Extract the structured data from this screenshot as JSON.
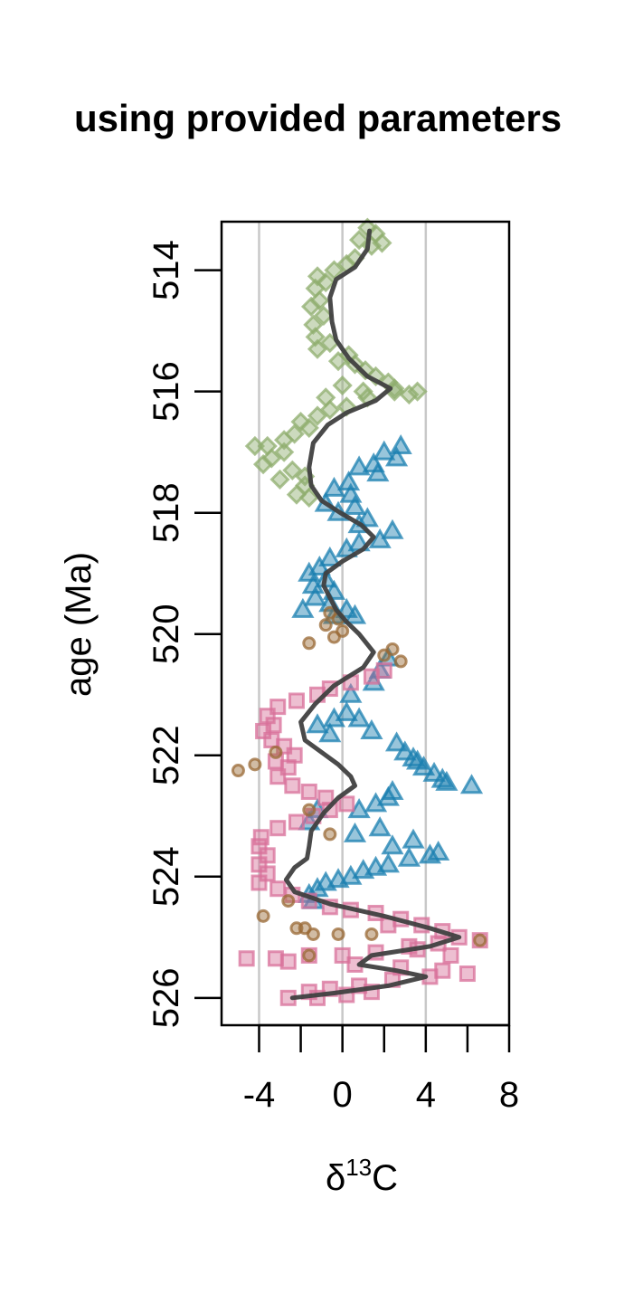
{
  "chart_data": {
    "type": "scatter",
    "title": "using provided parameters",
    "xlabel": {
      "prefix": "δ",
      "superscript": "13",
      "suffix": "C"
    },
    "ylabel": "age (Ma)",
    "xlim": [
      -5.8,
      8
    ],
    "ylim": [
      513.2,
      526.45
    ],
    "y_reversed": true,
    "xticks": [
      -4,
      -2,
      0,
      2,
      4,
      6,
      8
    ],
    "xtick_labels": [
      "-4",
      "",
      "0",
      "",
      "4",
      "",
      "8"
    ],
    "yticks": [
      514,
      516,
      518,
      520,
      522,
      524,
      526
    ],
    "ytick_labels": [
      "514",
      "516",
      "518",
      "520",
      "522",
      "524",
      "526"
    ],
    "vertical_gridlines": [
      -4,
      0,
      4
    ],
    "grid": true,
    "legend": "none",
    "series": [
      {
        "marker": "diamond",
        "color": "#8fae6e",
        "points": [
          [
            1.2,
            513.3
          ],
          [
            1.6,
            513.4
          ],
          [
            0.8,
            513.5
          ],
          [
            1.4,
            513.6
          ],
          [
            1.9,
            513.55
          ],
          [
            0.6,
            513.8
          ],
          [
            0.2,
            513.9
          ],
          [
            -0.4,
            514.0
          ],
          [
            -1.2,
            514.1
          ],
          [
            -0.8,
            514.2
          ],
          [
            -1.3,
            514.3
          ],
          [
            -1.1,
            514.5
          ],
          [
            -1.5,
            514.6
          ],
          [
            -0.9,
            514.75
          ],
          [
            -1.4,
            514.9
          ],
          [
            -1.3,
            515.1
          ],
          [
            -0.6,
            515.2
          ],
          [
            -1.2,
            515.3
          ],
          [
            0.3,
            515.4
          ],
          [
            -0.2,
            515.5
          ],
          [
            0.6,
            515.55
          ],
          [
            1.1,
            515.65
          ],
          [
            1.6,
            515.75
          ],
          [
            2.2,
            515.85
          ],
          [
            2.5,
            515.95
          ],
          [
            1.0,
            516.0
          ],
          [
            2.5,
            516.0
          ],
          [
            3.6,
            516.0
          ],
          [
            3.2,
            516.05
          ],
          [
            1.2,
            516.1
          ],
          [
            0.2,
            516.25
          ],
          [
            -0.6,
            516.3
          ],
          [
            -1.2,
            516.4
          ],
          [
            -2.0,
            516.5
          ],
          [
            -1.6,
            516.6
          ],
          [
            -2.3,
            516.7
          ],
          [
            -2.8,
            516.8
          ],
          [
            -3.6,
            516.9
          ],
          [
            -4.2,
            516.9
          ],
          [
            -2.8,
            517.0
          ],
          [
            -3.4,
            517.1
          ],
          [
            -3.8,
            517.2
          ],
          [
            -2.4,
            517.3
          ],
          [
            -1.8,
            517.4
          ],
          [
            -3.0,
            517.45
          ],
          [
            -1.8,
            517.55
          ],
          [
            -2.2,
            517.7
          ],
          [
            -1.6,
            517.75
          ],
          [
            -0.8,
            516.1
          ],
          [
            0.0,
            515.9
          ]
        ]
      },
      {
        "marker": "triangle",
        "color": "#1a7fb0",
        "points": [
          [
            2.8,
            516.9
          ],
          [
            2.0,
            517.0
          ],
          [
            2.6,
            517.1
          ],
          [
            1.5,
            517.2
          ],
          [
            0.8,
            517.25
          ],
          [
            1.7,
            517.35
          ],
          [
            0.3,
            517.5
          ],
          [
            -0.4,
            517.6
          ],
          [
            0.4,
            517.7
          ],
          [
            -0.8,
            517.85
          ],
          [
            0.6,
            517.9
          ],
          [
            -0.2,
            518.0
          ],
          [
            1.2,
            518.1
          ],
          [
            0.8,
            518.2
          ],
          [
            2.4,
            518.3
          ],
          [
            1.8,
            518.45
          ],
          [
            0.8,
            518.5
          ],
          [
            0.2,
            518.6
          ],
          [
            -0.6,
            518.75
          ],
          [
            -1.1,
            518.9
          ],
          [
            -1.6,
            519.0
          ],
          [
            -0.8,
            519.1
          ],
          [
            -1.4,
            519.2
          ],
          [
            -0.4,
            519.3
          ],
          [
            -1.3,
            519.4
          ],
          [
            -0.6,
            519.5
          ],
          [
            -1.9,
            519.6
          ],
          [
            0.2,
            519.6
          ],
          [
            -0.4,
            519.7
          ],
          [
            0.6,
            519.7
          ],
          [
            2.2,
            520.4
          ],
          [
            1.8,
            520.6
          ],
          [
            1.5,
            520.8
          ],
          [
            0.4,
            521.0
          ],
          [
            0.2,
            521.3
          ],
          [
            -0.4,
            521.4
          ],
          [
            -1.2,
            521.5
          ],
          [
            0.8,
            521.4
          ],
          [
            1.4,
            521.6
          ],
          [
            -0.6,
            521.65
          ],
          [
            2.6,
            521.8
          ],
          [
            3.0,
            521.95
          ],
          [
            3.4,
            522.05
          ],
          [
            3.9,
            522.2
          ],
          [
            4.4,
            522.3
          ],
          [
            5.0,
            522.45
          ],
          [
            6.2,
            522.5
          ],
          [
            3.6,
            522.1
          ],
          [
            4.8,
            522.4
          ],
          [
            2.4,
            522.6
          ],
          [
            2.2,
            522.7
          ],
          [
            1.6,
            522.8
          ],
          [
            0.8,
            522.9
          ],
          [
            -1.2,
            522.9
          ],
          [
            -1.6,
            523.1
          ],
          [
            1.8,
            523.2
          ],
          [
            0.6,
            523.3
          ],
          [
            3.4,
            523.4
          ],
          [
            2.4,
            523.5
          ],
          [
            4.6,
            523.6
          ],
          [
            4.2,
            523.65
          ],
          [
            3.2,
            523.7
          ],
          [
            2.2,
            523.8
          ],
          [
            1.6,
            523.85
          ],
          [
            1.0,
            523.9
          ],
          [
            0.4,
            524.0
          ],
          [
            -0.2,
            524.05
          ],
          [
            -0.8,
            524.1
          ],
          [
            -1.2,
            524.2
          ],
          [
            -1.6,
            524.3
          ],
          [
            -1.4,
            524.4
          ]
        ]
      },
      {
        "marker": "square",
        "color": "#d8709a",
        "points": [
          [
            2.0,
            520.6
          ],
          [
            1.4,
            520.7
          ],
          [
            0.4,
            520.8
          ],
          [
            -0.6,
            520.9
          ],
          [
            -1.2,
            521.0
          ],
          [
            -2.2,
            521.1
          ],
          [
            -3.1,
            521.2
          ],
          [
            -3.6,
            521.35
          ],
          [
            -3.3,
            521.5
          ],
          [
            -3.8,
            521.6
          ],
          [
            -3.4,
            521.75
          ],
          [
            -2.8,
            521.85
          ],
          [
            -2.3,
            522.0
          ],
          [
            -3.2,
            522.1
          ],
          [
            -2.6,
            522.2
          ],
          [
            -3.1,
            522.35
          ],
          [
            -2.4,
            522.5
          ],
          [
            -1.6,
            522.6
          ],
          [
            -0.8,
            522.7
          ],
          [
            0.2,
            522.8
          ],
          [
            -0.6,
            522.9
          ],
          [
            -1.4,
            523.0
          ],
          [
            -2.2,
            523.1
          ],
          [
            -3.1,
            523.2
          ],
          [
            -3.9,
            523.35
          ],
          [
            -4.0,
            523.5
          ],
          [
            -3.6,
            523.65
          ],
          [
            -4.0,
            523.8
          ],
          [
            -3.6,
            523.95
          ],
          [
            -4.0,
            524.1
          ],
          [
            -3.1,
            524.2
          ],
          [
            -2.4,
            524.3
          ],
          [
            -1.6,
            524.4
          ],
          [
            -0.6,
            524.5
          ],
          [
            0.4,
            524.55
          ],
          [
            1.6,
            524.6
          ],
          [
            2.8,
            524.7
          ],
          [
            3.8,
            524.8
          ],
          [
            4.8,
            524.9
          ],
          [
            5.6,
            525.0
          ],
          [
            6.6,
            525.05
          ],
          [
            4.6,
            525.1
          ],
          [
            3.2,
            525.15
          ],
          [
            1.6,
            525.25
          ],
          [
            0.0,
            525.3
          ],
          [
            -1.6,
            525.3
          ],
          [
            -3.2,
            525.35
          ],
          [
            -4.6,
            525.35
          ],
          [
            -2.6,
            525.4
          ],
          [
            0.6,
            525.45
          ],
          [
            2.8,
            525.5
          ],
          [
            4.8,
            525.55
          ],
          [
            6.0,
            525.6
          ],
          [
            4.2,
            525.65
          ],
          [
            2.4,
            525.7
          ],
          [
            0.8,
            525.8
          ],
          [
            -0.6,
            525.85
          ],
          [
            -1.6,
            525.9
          ],
          [
            -2.6,
            526.0
          ],
          [
            -1.2,
            526.0
          ],
          [
            0.2,
            525.95
          ],
          [
            1.4,
            525.9
          ],
          [
            5.2,
            525.3
          ],
          [
            3.6,
            525.2
          ],
          [
            2.2,
            524.8
          ]
        ]
      },
      {
        "marker": "circle",
        "color": "#9a6a35",
        "points": [
          [
            -0.6,
            519.65
          ],
          [
            -0.2,
            519.75
          ],
          [
            -0.8,
            519.85
          ],
          [
            0.0,
            519.95
          ],
          [
            -0.4,
            520.05
          ],
          [
            -1.6,
            520.15
          ],
          [
            2.4,
            520.25
          ],
          [
            2.0,
            520.35
          ],
          [
            2.8,
            520.45
          ],
          [
            -3.2,
            521.95
          ],
          [
            -4.2,
            522.15
          ],
          [
            -5.0,
            522.25
          ],
          [
            -1.6,
            522.9
          ],
          [
            -0.6,
            523.3
          ],
          [
            -3.8,
            524.65
          ],
          [
            -2.6,
            524.4
          ],
          [
            -2.2,
            524.85
          ],
          [
            -1.8,
            524.85
          ],
          [
            -1.4,
            524.95
          ],
          [
            -0.2,
            524.95
          ],
          [
            1.4,
            524.95
          ],
          [
            -1.6,
            525.3
          ],
          [
            6.6,
            525.05
          ]
        ]
      }
    ],
    "smooth_line": {
      "color": "#404040",
      "points": [
        [
          1.3,
          513.35
        ],
        [
          1.2,
          513.65
        ],
        [
          0.6,
          513.95
        ],
        [
          -0.3,
          514.15
        ],
        [
          -0.6,
          514.45
        ],
        [
          -0.5,
          514.85
        ],
        [
          -0.3,
          515.15
        ],
        [
          0.3,
          515.45
        ],
        [
          1.2,
          515.75
        ],
        [
          2.3,
          515.95
        ],
        [
          1.6,
          516.15
        ],
        [
          0.2,
          516.35
        ],
        [
          -0.7,
          516.55
        ],
        [
          -1.4,
          516.85
        ],
        [
          -1.6,
          517.25
        ],
        [
          -1.5,
          517.55
        ],
        [
          -1.0,
          517.8
        ],
        [
          -0.1,
          518.0
        ],
        [
          0.9,
          518.2
        ],
        [
          1.5,
          518.4
        ],
        [
          1.0,
          518.6
        ],
        [
          0.0,
          518.8
        ],
        [
          -0.8,
          519.0
        ],
        [
          -0.9,
          519.2
        ],
        [
          -0.6,
          519.4
        ],
        [
          -0.3,
          519.6
        ],
        [
          0.2,
          519.8
        ],
        [
          0.8,
          520.0
        ],
        [
          1.5,
          520.3
        ],
        [
          1.0,
          520.55
        ],
        [
          -0.4,
          520.85
        ],
        [
          -1.3,
          521.15
        ],
        [
          -2.0,
          521.45
        ],
        [
          -1.8,
          521.75
        ],
        [
          -1.0,
          521.95
        ],
        [
          -0.2,
          522.15
        ],
        [
          0.4,
          522.35
        ],
        [
          0.6,
          522.5
        ],
        [
          -0.2,
          522.7
        ],
        [
          -0.9,
          522.95
        ],
        [
          -1.5,
          523.25
        ],
        [
          -1.6,
          523.5
        ],
        [
          -1.7,
          523.7
        ],
        [
          -2.3,
          523.85
        ],
        [
          -2.7,
          524.05
        ],
        [
          -2.3,
          524.25
        ],
        [
          -0.6,
          524.45
        ],
        [
          2.0,
          524.65
        ],
        [
          4.2,
          524.85
        ],
        [
          5.6,
          525.0
        ],
        [
          4.2,
          525.15
        ],
        [
          1.4,
          525.3
        ],
        [
          0.8,
          525.45
        ],
        [
          2.6,
          525.55
        ],
        [
          4.0,
          525.65
        ],
        [
          2.2,
          525.8
        ],
        [
          -0.4,
          525.92
        ],
        [
          -2.4,
          526.0
        ]
      ]
    }
  }
}
